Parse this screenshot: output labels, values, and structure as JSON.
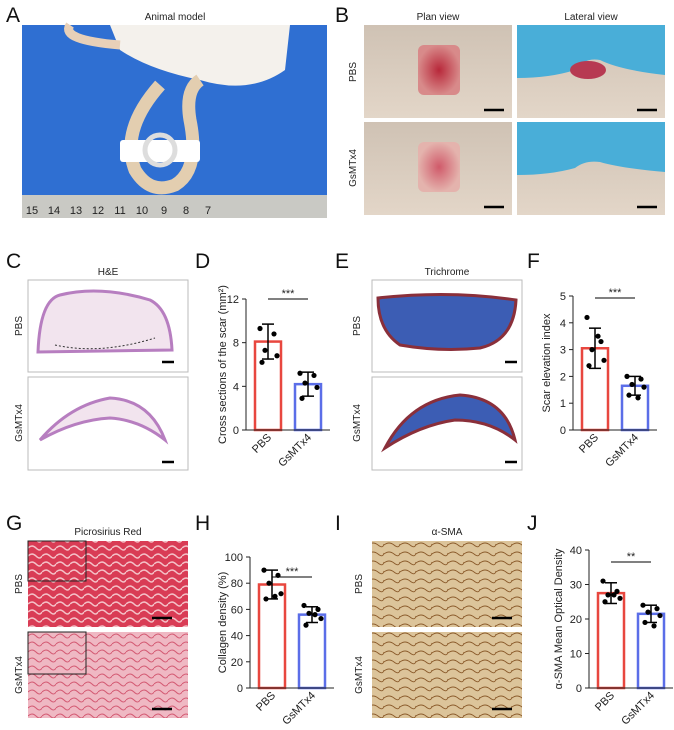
{
  "panels": {
    "labels": [
      "A",
      "B",
      "C",
      "D",
      "E",
      "F",
      "G",
      "H",
      "I",
      "J"
    ]
  },
  "images": {
    "A": {
      "title": "Animal model",
      "ruler": [
        "15",
        "14",
        "13",
        "12",
        "11",
        "10",
        "9",
        "8",
        "7"
      ]
    },
    "B": {
      "columns": [
        "Plan view",
        "Lateral view"
      ],
      "rows": [
        "PBS",
        "GsMTx4"
      ]
    },
    "C": {
      "title": "H&E",
      "rows": [
        "PBS",
        "GsMTx4"
      ]
    },
    "E": {
      "title": "Trichrome",
      "rows": [
        "PBS",
        "GsMTx4"
      ]
    },
    "G": {
      "title": "Picrosirius Red",
      "rows": [
        "PBS",
        "GsMTx4"
      ]
    },
    "I": {
      "title": "α-SMA",
      "rows": [
        "PBS",
        "GsMTx4"
      ]
    }
  },
  "chart_data": [
    {
      "type": "bar",
      "ylabel": "Cross sections of the scar (mm²)",
      "categories": [
        "PBS",
        "GsMTx4"
      ],
      "values": [
        8.1,
        4.2
      ],
      "errors": [
        1.6,
        1.1
      ],
      "points": [
        [
          9.3,
          8.8,
          7.3,
          6.8,
          6.2
        ],
        [
          5.2,
          5.0,
          4.3,
          3.9,
          2.9
        ]
      ],
      "colors": [
        "#e8473f",
        "#5b6ee8"
      ],
      "ylim": [
        0,
        12
      ],
      "yticks": [
        0,
        4,
        8,
        12
      ],
      "significance": "***"
    },
    {
      "type": "bar",
      "ylabel": "Scar elevation index",
      "categories": [
        "PBS",
        "GsMTx4"
      ],
      "values": [
        3.05,
        1.65
      ],
      "errors": [
        0.75,
        0.35
      ],
      "points": [
        [
          4.2,
          3.3,
          3.0,
          2.6,
          2.4,
          3.5
        ],
        [
          2.0,
          1.9,
          1.7,
          1.6,
          1.3,
          1.2
        ]
      ],
      "colors": [
        "#e8473f",
        "#5b6ee8"
      ],
      "ylim": [
        0,
        5
      ],
      "yticks": [
        0,
        1,
        2,
        3,
        4,
        5
      ],
      "significance": "***"
    },
    {
      "type": "bar",
      "ylabel": "Collagen density (%)",
      "categories": [
        "PBS",
        "GsMTx4"
      ],
      "values": [
        79,
        56
      ],
      "errors": [
        11,
        6
      ],
      "points": [
        [
          90,
          86,
          80,
          72,
          68,
          70
        ],
        [
          63,
          60,
          57,
          53,
          48,
          56
        ]
      ],
      "colors": [
        "#e8473f",
        "#5b6ee8"
      ],
      "ylim": [
        0,
        100
      ],
      "yticks": [
        0,
        20,
        40,
        60,
        80,
        100
      ],
      "significance": "***"
    },
    {
      "type": "bar",
      "ylabel": "α-SMA Mean Optical Density",
      "categories": [
        "PBS",
        "GsMTx4"
      ],
      "values": [
        27.5,
        21.5
      ],
      "errors": [
        3,
        2.5
      ],
      "points": [
        [
          31,
          28,
          27,
          26,
          25,
          27
        ],
        [
          24,
          23,
          22,
          21,
          19,
          18
        ]
      ],
      "colors": [
        "#e8473f",
        "#5b6ee8"
      ],
      "ylim": [
        0,
        40
      ],
      "yticks": [
        0,
        10,
        20,
        30,
        40
      ],
      "significance": "**"
    }
  ]
}
